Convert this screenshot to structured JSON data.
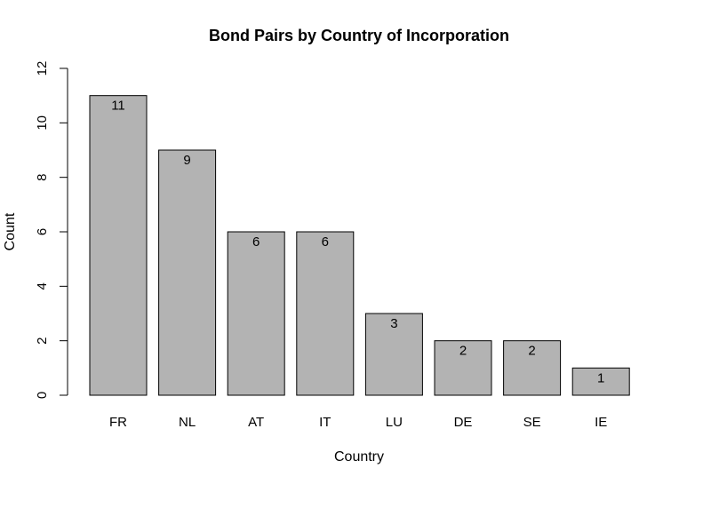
{
  "chart_data": {
    "type": "bar",
    "title": "Bond Pairs by Country of Incorporation",
    "xlabel": "Country",
    "ylabel": "Count",
    "categories": [
      "FR",
      "NL",
      "AT",
      "IT",
      "LU",
      "DE",
      "SE",
      "IE"
    ],
    "values": [
      11,
      9,
      6,
      6,
      3,
      2,
      2,
      1
    ],
    "data_labels": [
      "11",
      "9",
      "6",
      "6",
      "3",
      "2",
      "2",
      "1"
    ],
    "ylim": [
      0,
      12
    ],
    "yticks": [
      0,
      2,
      4,
      6,
      8,
      10,
      12
    ],
    "ytick_labels": [
      "0",
      "2",
      "4",
      "6",
      "8",
      "10",
      "12"
    ],
    "bar_color": "#b3b3b3",
    "grid": false,
    "legend": "none"
  }
}
